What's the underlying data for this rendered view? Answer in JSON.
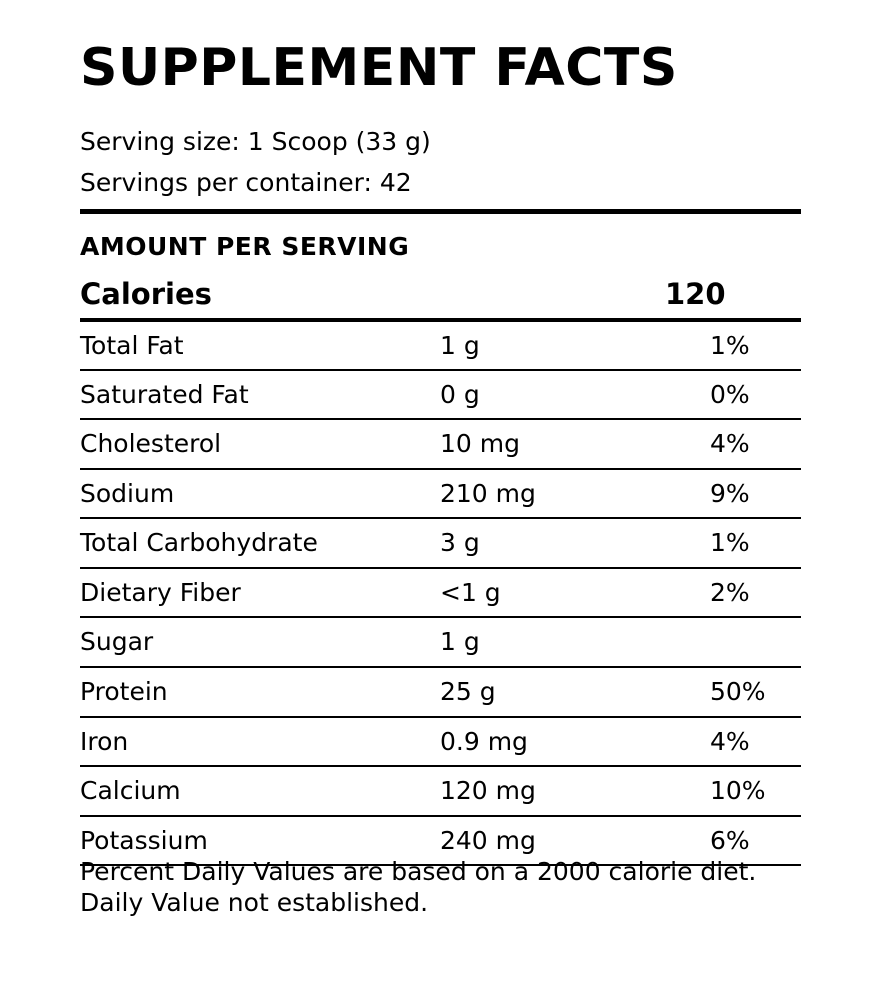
{
  "label": {
    "title": "SUPPLEMENT FACTS",
    "serving_size": "Serving size: 1 Scoop (33 g)",
    "servings_per_container": "Servings per container: 42",
    "amount_per_serving": "AMOUNT PER SERVING",
    "calories_label": "Calories",
    "calories_value": "120"
  },
  "nutrients": [
    {
      "name": "Total Fat",
      "amount": "1 g",
      "dv": "1%"
    },
    {
      "name": "Saturated Fat",
      "amount": "0 g",
      "dv": "0%"
    },
    {
      "name": "Cholesterol",
      "amount": "10 mg",
      "dv": "4%"
    },
    {
      "name": "Sodium",
      "amount": "210 mg",
      "dv": "9%"
    },
    {
      "name": "Total Carbohydrate",
      "amount": "3 g",
      "dv": "1%"
    },
    {
      "name": "Dietary Fiber",
      "amount": "<1 g",
      "dv": "2%"
    },
    {
      "name": "Sugar",
      "amount": "1 g",
      "dv": ""
    },
    {
      "name": "Protein",
      "amount": "25 g",
      "dv": "50%"
    },
    {
      "name": "Iron",
      "amount": "0.9 mg",
      "dv": "4%"
    },
    {
      "name": "Calcium",
      "amount": "120 mg",
      "dv": "10%"
    },
    {
      "name": "Potassium",
      "amount": "240 mg",
      "dv": "6%"
    }
  ],
  "footnote": {
    "line1": "Percent Daily Values are based on a 2000 calorie diet.",
    "line2": "Daily Value not established."
  }
}
